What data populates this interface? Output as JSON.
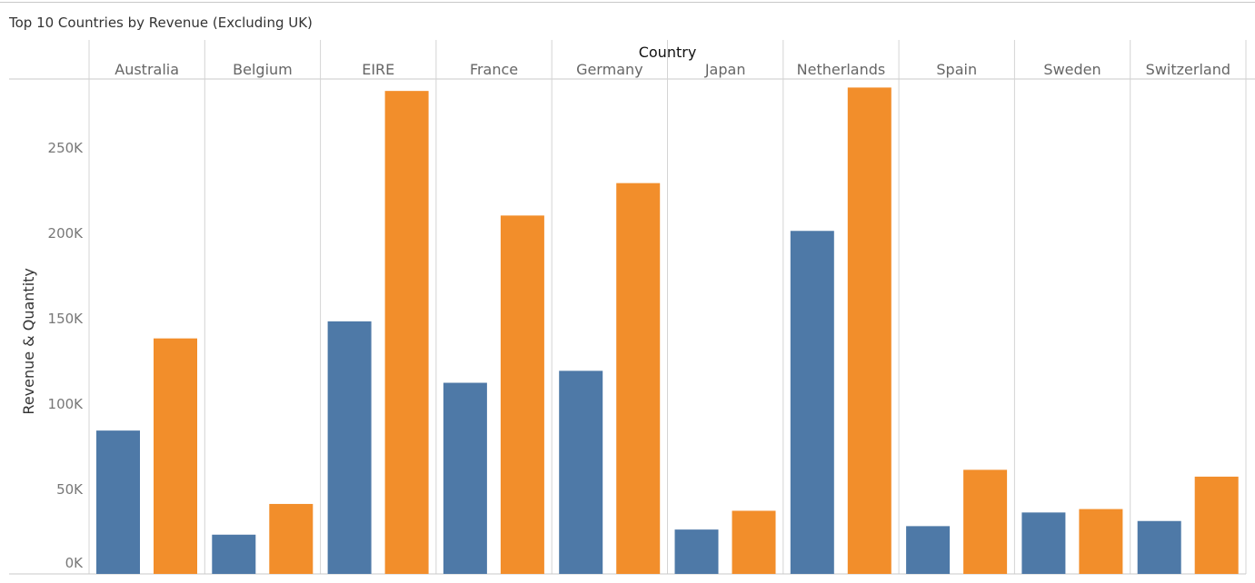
{
  "title": "Top 10 Countries by Revenue (Excluding UK)",
  "chart_data": {
    "type": "bar",
    "title": "Top 10 Countries by Revenue (Excluding UK)",
    "column_header": "Country",
    "ylabel": "Revenue & Quantity",
    "categories": [
      "Australia",
      "Belgium",
      "EIRE",
      "France",
      "Germany",
      "Japan",
      "Netherlands",
      "Spain",
      "Sweden",
      "Switzerland"
    ],
    "series": [
      {
        "values": [
          84000,
          23000,
          148000,
          112000,
          119000,
          26000,
          201000,
          28000,
          36000,
          31000
        ],
        "color": "#4e79a7"
      },
      {
        "values": [
          138000,
          41000,
          283000,
          210000,
          229000,
          37000,
          285000,
          61000,
          38000,
          57000
        ],
        "color": "#f28e2b"
      }
    ],
    "ylim": [
      0,
      290000
    ],
    "y_ticks": [
      0,
      50000,
      100000,
      150000,
      200000,
      250000
    ],
    "y_tick_labels": [
      "0K",
      "50K",
      "100K",
      "150K",
      "200K",
      "250K"
    ],
    "grid": "vertical column dividers",
    "legend": "none"
  }
}
